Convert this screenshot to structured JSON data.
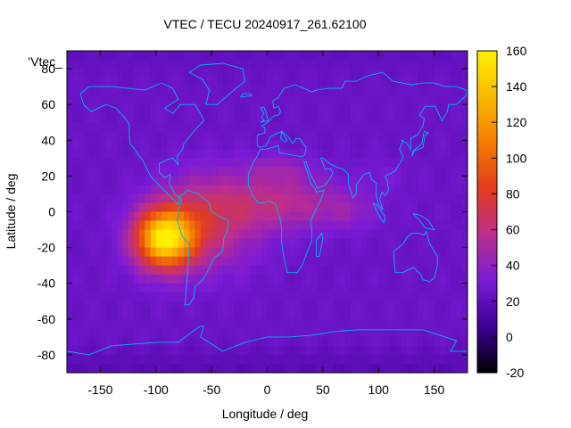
{
  "chart_data": {
    "type": "heatmap",
    "title": "VTEC / TECU 20240917_261.62100",
    "xlabel": "Longitude / deg",
    "ylabel": "Latitude / deg",
    "xlim": [
      -180,
      180
    ],
    "ylim": [
      -90,
      90
    ],
    "x_ticks": [
      -150,
      -100,
      -50,
      0,
      50,
      100,
      150
    ],
    "y_ticks": [
      -80,
      -60,
      -40,
      -20,
      0,
      20,
      40,
      60,
      80
    ],
    "colorbar": {
      "range": [
        -20,
        160
      ],
      "ticks": [
        -20,
        0,
        20,
        40,
        60,
        80,
        100,
        120,
        140,
        160
      ],
      "palette": [
        "#000000",
        "#3d0096",
        "#7a1bd6",
        "#bb2e8e",
        "#e23c1c",
        "#f57b00",
        "#fbb900",
        "#fff000"
      ]
    },
    "overlay": "coastlines",
    "coastline_color": "#00b4f0",
    "series_label": "'Vtec_",
    "grid": false,
    "field_peaks": [
      {
        "lon": -92,
        "lat": -15,
        "value": 150,
        "spread_lon": 26,
        "spread_lat": 16
      },
      {
        "lon": -55,
        "lat": -5,
        "value": 65,
        "spread_lon": 45,
        "spread_lat": 25
      },
      {
        "lon": 15,
        "lat": 5,
        "value": 55,
        "spread_lon": 55,
        "spread_lat": 15
      },
      {
        "lon": 10,
        "lat": 24,
        "value": 40,
        "spread_lon": 30,
        "spread_lat": 8
      },
      {
        "lon": 75,
        "lat": 0,
        "value": 35,
        "spread_lon": 25,
        "spread_lat": 10
      },
      {
        "lon": 105,
        "lat": 20,
        "value": 30,
        "spread_lon": 25,
        "spread_lat": 8
      }
    ],
    "field_background": 25
  }
}
